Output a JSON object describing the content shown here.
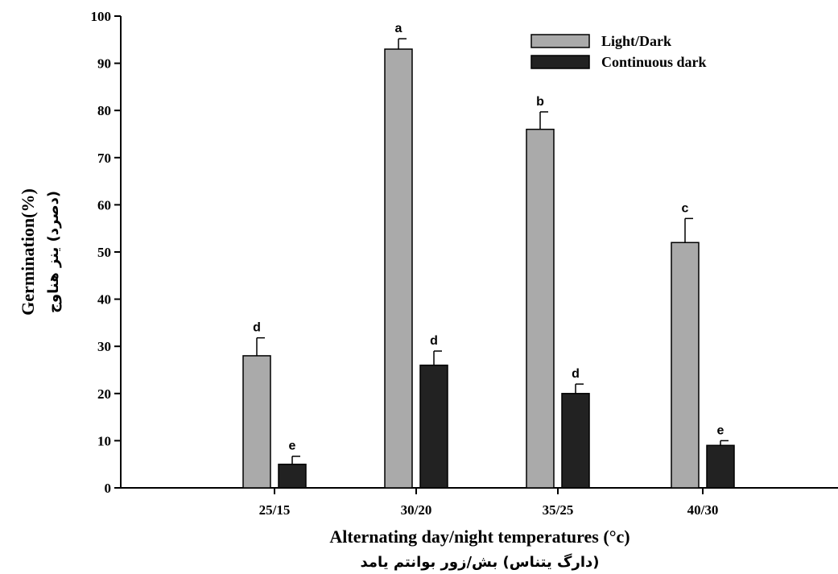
{
  "chart_data": {
    "type": "bar",
    "categories": [
      "25/15",
      "30/20",
      "35/25",
      "40/30"
    ],
    "series": [
      {
        "name": "Light/Dark",
        "color": "#aaaaaa",
        "values": [
          28,
          93,
          76,
          52
        ],
        "errors": [
          3.8,
          2.2,
          3.7,
          5.1
        ],
        "letters": [
          "d",
          "a",
          "b",
          "c"
        ]
      },
      {
        "name": "Continuous dark",
        "color": "#222222",
        "values": [
          5,
          26,
          20,
          9
        ],
        "errors": [
          1.7,
          3.0,
          2.0,
          1.0
        ],
        "letters": [
          "e",
          "d",
          "d",
          "e"
        ]
      }
    ],
    "xlabel": "Alternating day/night temperatures (°c)",
    "xlabel_sub": "(دارگ یتناس) بش/زور بوانتم یامد",
    "ylabel": "Germination(%)",
    "ylabel_sub": "(دصرد) ینز هناوج",
    "ylim": [
      0,
      100
    ],
    "yticks": [
      0,
      10,
      20,
      30,
      40,
      50,
      60,
      70,
      80,
      90,
      100
    ],
    "grid": false,
    "legend_position": "top-right"
  }
}
